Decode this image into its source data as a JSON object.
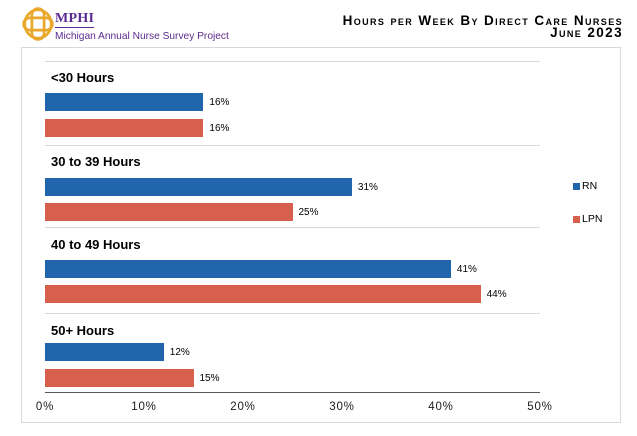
{
  "header": {
    "logo_icon": "mphi-knot-logo",
    "brand": "MPHI",
    "brand_subtitle": "Michigan Annual Nurse Survey Project",
    "brand_color": "#5B2C90",
    "logo_gold_color": "#E9A82B",
    "title_line1": "Hours per Week By Direct Care Nurses",
    "title_line2": "June 2023"
  },
  "chart_data": {
    "type": "bar",
    "orientation": "horizontal",
    "title": "Hours per Week By Direct Care Nurses",
    "subtitle": "June 2023",
    "categories": [
      "<30 Hours",
      "30 to 39 Hours",
      "40 to 49 Hours",
      "50+ Hours"
    ],
    "series": [
      {
        "name": "RN",
        "color": "#2166AC",
        "values": [
          16,
          31,
          41,
          12
        ],
        "labels": [
          "16%",
          "31%",
          "41%",
          "12%"
        ]
      },
      {
        "name": "LPN",
        "color": "#D6604D",
        "values": [
          16,
          25,
          44,
          15
        ],
        "labels": [
          "16%",
          "25%",
          "44%",
          "15%"
        ]
      }
    ],
    "value_suffix": "%",
    "xlim": [
      0,
      50
    ],
    "x_tick_values": [
      0,
      10,
      20,
      30,
      40,
      50
    ],
    "x_tick_labels": [
      "0%",
      "10%",
      "20%",
      "30%",
      "40%",
      "50%"
    ],
    "legend_position": "right",
    "legend_entries": [
      "RN",
      "LPN"
    ],
    "grid": "horizontal-category-separators",
    "gridline_color": "#D9D9D9",
    "axis_line_color": "#595959"
  }
}
